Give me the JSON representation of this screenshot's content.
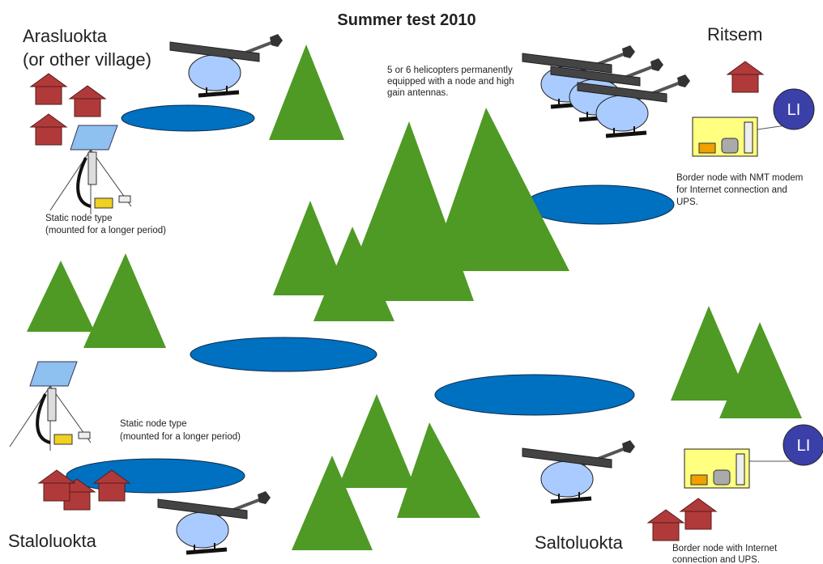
{
  "header": {
    "title": "Summer test 2010"
  },
  "places": {
    "arasluokta": [
      "Arasluokta",
      "(or other village)"
    ],
    "ritsem": "Ritsem",
    "staloluokta": "Staloluokta",
    "saltoluokta": "Saltoluokta"
  },
  "notes": {
    "helicopters": [
      "5 or 6 helicopters permanently",
      "equipped with a node and high",
      "gain antennas."
    ],
    "static_top": [
      "Static node type",
      "(mounted for a longer period)"
    ],
    "static_bottom": [
      "Static node type",
      "(mounted for a longer period)"
    ],
    "border_top": [
      "Border node with NMT modem",
      "for Internet connection and",
      "UPS."
    ],
    "border_bottom": [
      "Border node with Internet",
      "connection and UPS."
    ]
  },
  "li_labels": [
    "LI",
    "LI"
  ]
}
